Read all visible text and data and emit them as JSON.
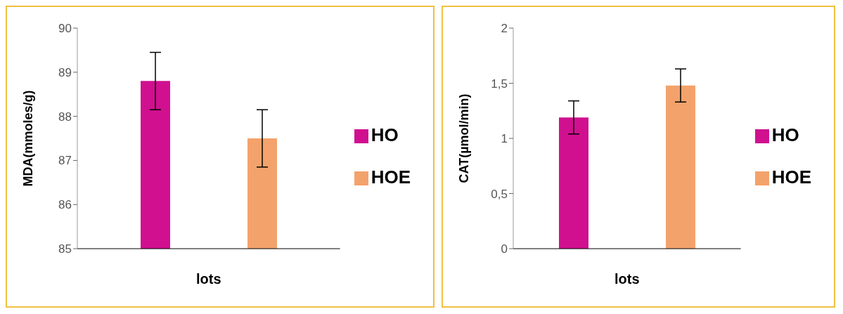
{
  "chart_data": [
    {
      "type": "bar",
      "ylabel": "MDA(mmoles/g)",
      "xlabel": "lots",
      "categories": [
        null
      ],
      "ylim": [
        85,
        90
      ],
      "yticks": [
        85,
        86,
        87,
        88,
        89,
        90
      ],
      "legend": "right",
      "grid": false,
      "series": [
        {
          "name": "HO",
          "color": "#d0108f",
          "values": [
            88.8
          ],
          "errors": [
            0.65
          ]
        },
        {
          "name": "HOE",
          "color": "#f4a26b",
          "values": [
            87.5
          ],
          "errors": [
            0.65
          ]
        }
      ]
    },
    {
      "type": "bar",
      "ylabel": "CAT(µmol/min)",
      "xlabel": "lots",
      "categories": [
        null
      ],
      "ylim": [
        0,
        2
      ],
      "yticks": [
        0,
        {
          "value": 0.5,
          "label": "0,5"
        },
        1,
        {
          "value": 1.5,
          "label": "1,5"
        },
        2
      ],
      "legend": "right",
      "grid": false,
      "series": [
        {
          "name": "HO",
          "color": "#d0108f",
          "values": [
            1.19
          ],
          "errors": [
            0.15
          ]
        },
        {
          "name": "HOE",
          "color": "#f4a26b",
          "values": [
            1.48
          ],
          "errors": [
            0.15
          ]
        }
      ]
    }
  ]
}
